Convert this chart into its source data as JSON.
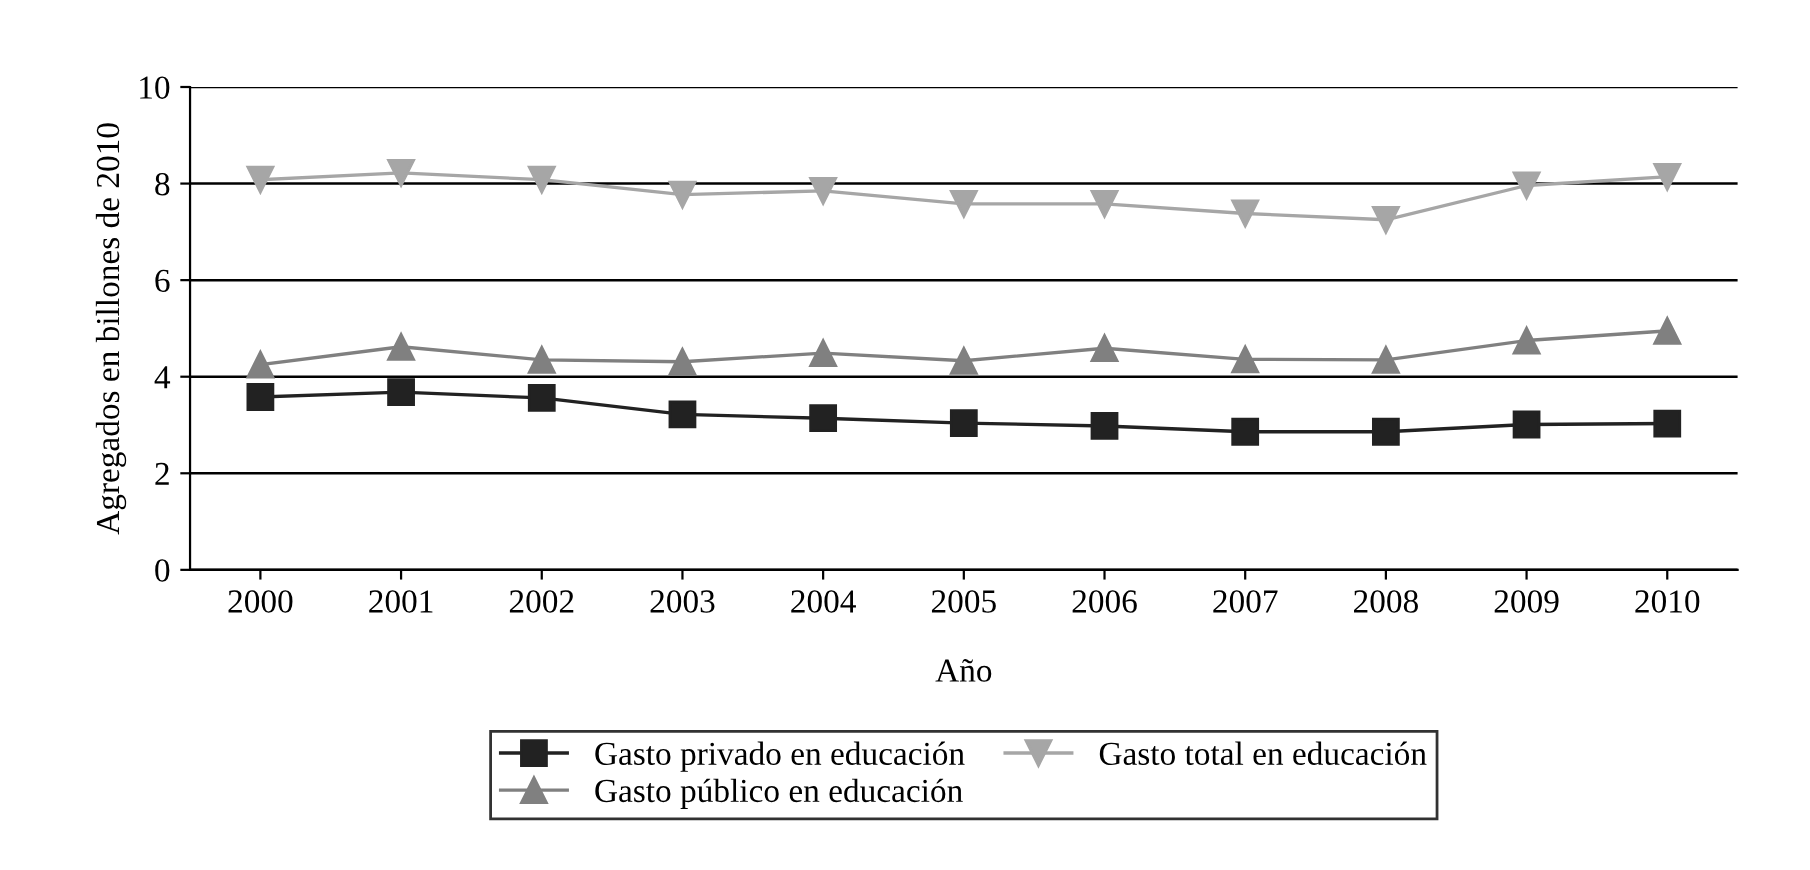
{
  "chart_data": {
    "type": "line",
    "xlabel": "Año",
    "ylabel": "Agregados en billones de 2010",
    "categories": [
      "2000",
      "2001",
      "2002",
      "2003",
      "2004",
      "2005",
      "2006",
      "2007",
      "2008",
      "2009",
      "2010"
    ],
    "series": [
      {
        "name": "Gasto privado en educación",
        "color": "#222222",
        "marker": "square",
        "values": [
          3.58,
          3.68,
          3.56,
          3.22,
          3.14,
          3.04,
          2.98,
          2.86,
          2.86,
          3.01,
          3.03
        ]
      },
      {
        "name": "Gasto público en educación",
        "color": "#808080",
        "marker": "triangle",
        "values": [
          4.25,
          4.62,
          4.35,
          4.31,
          4.49,
          4.33,
          4.59,
          4.36,
          4.35,
          4.75,
          4.95
        ]
      },
      {
        "name": "Gasto total en educación",
        "color": "#a6a6a6",
        "marker": "triangle_down",
        "values": [
          8.08,
          8.22,
          8.08,
          7.77,
          7.85,
          7.58,
          7.58,
          7.38,
          7.25,
          7.96,
          8.14
        ]
      }
    ],
    "ylim": [
      0,
      10
    ],
    "yticks": [
      0,
      2,
      4,
      6,
      8,
      10
    ],
    "grid": "y",
    "legend": "bottom"
  }
}
